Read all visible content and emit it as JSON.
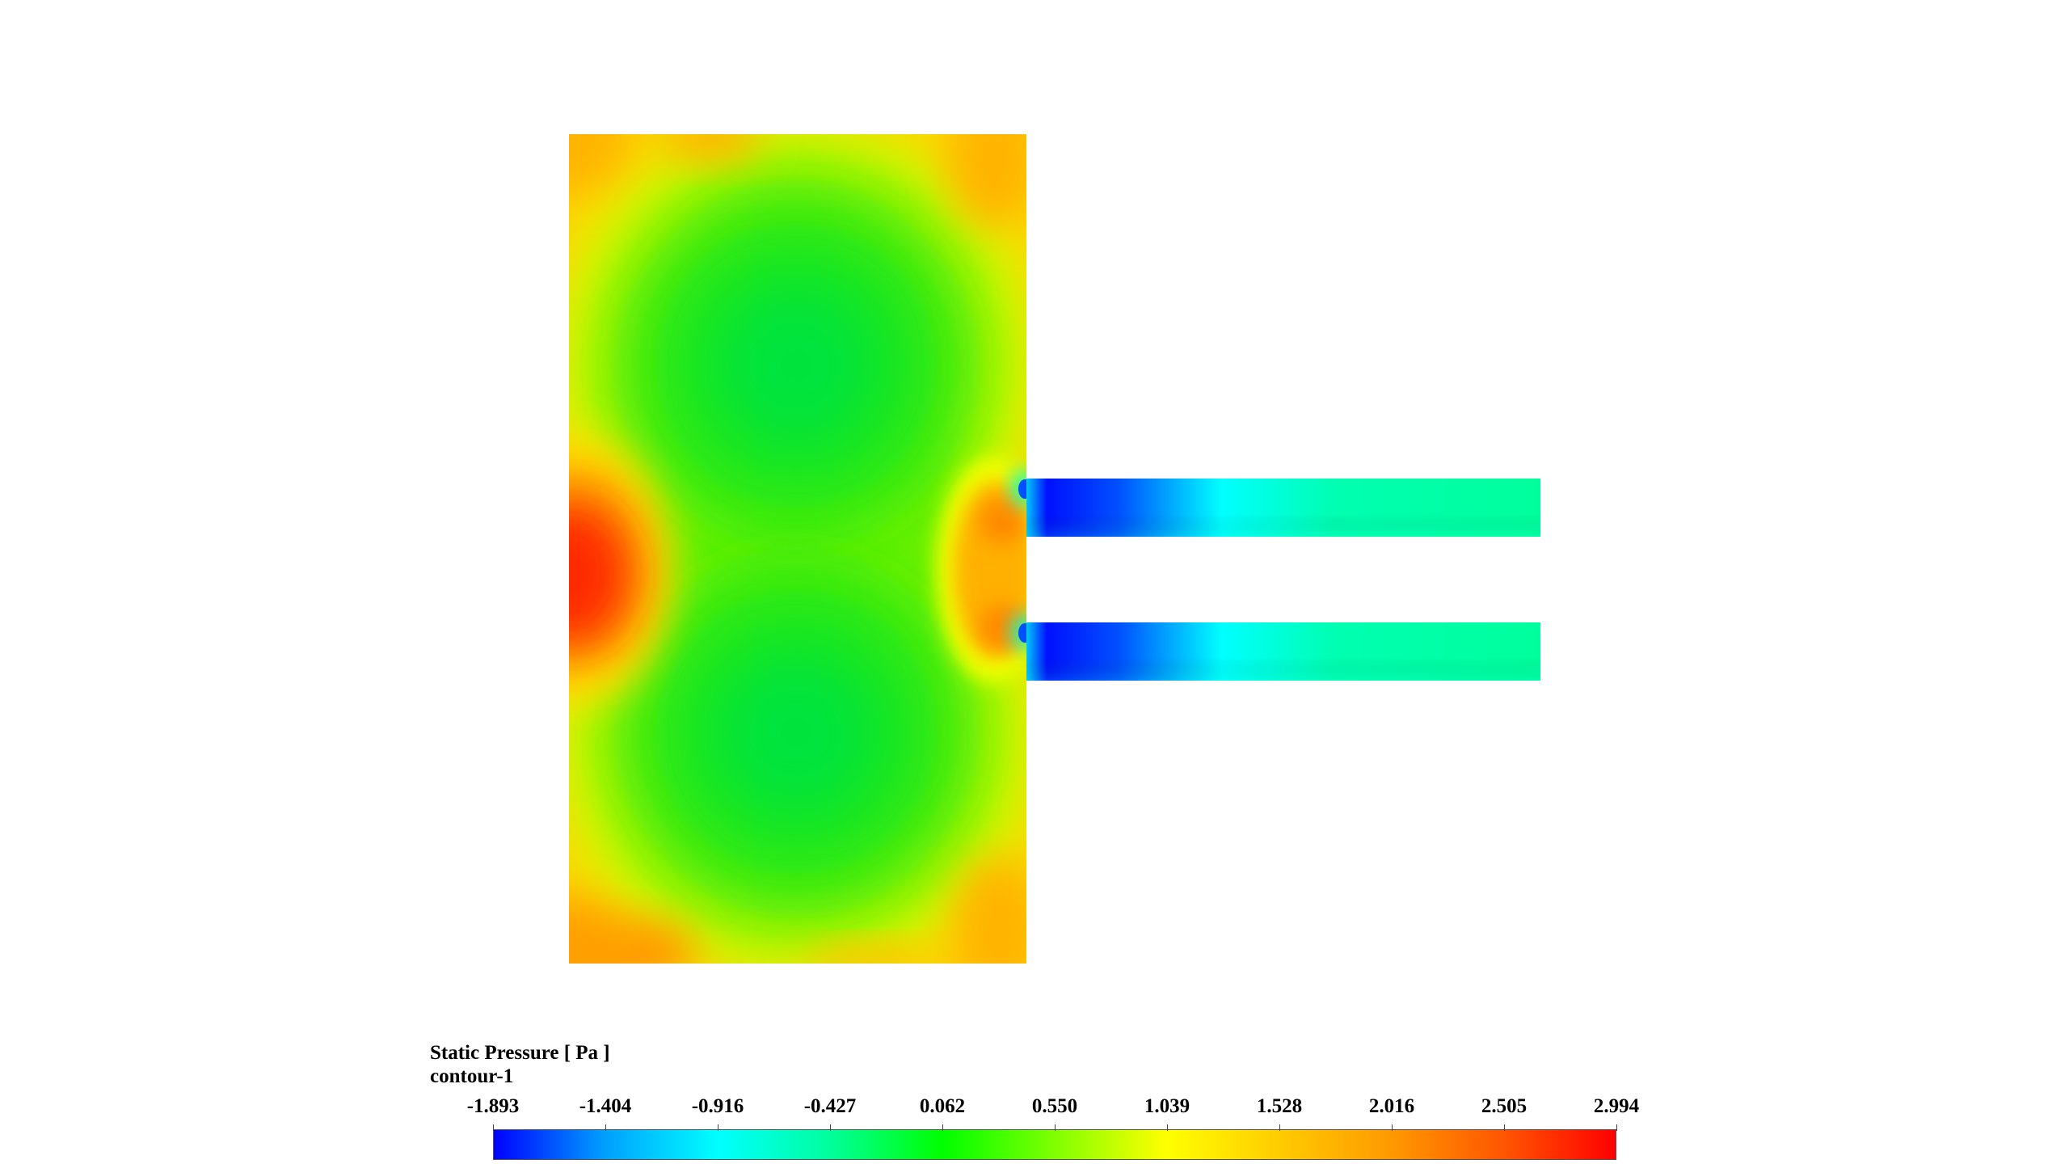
{
  "legend": {
    "title": "Static Pressure [ Pa ]",
    "subtitle": "contour-1",
    "ticks": [
      "-1.893",
      "-1.404",
      "-0.916",
      "-0.427",
      "0.062",
      "0.550",
      "1.039",
      "1.528",
      "2.016",
      "2.505",
      "2.994"
    ],
    "min": -1.893,
    "max": 2.994,
    "colormap": [
      "#0000ff",
      "#00a0ff",
      "#00ffff",
      "#00ff9c",
      "#00ff00",
      "#80ff00",
      "#ffff00",
      "#ffcc00",
      "#ff9900",
      "#ff5500",
      "#ff0000"
    ]
  },
  "colors": {
    "background": "#ffffff",
    "chamber_base": "#2ee80a",
    "corner_high": "#ffb400",
    "left_peak": "#ff2a00",
    "channel_low": "#0018ff",
    "channel_outlet": "#00ffa0"
  }
}
